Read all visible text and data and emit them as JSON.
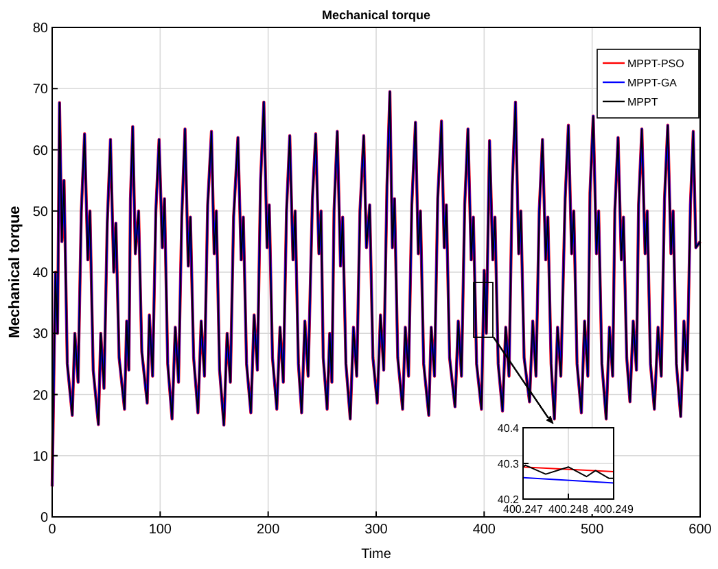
{
  "chart_data": [
    {
      "type": "line",
      "title": "Mechanical torque",
      "xlabel": "Time",
      "ylabel": "Mechanical torque",
      "xlim": [
        0,
        600
      ],
      "xticks": [
        0,
        100,
        200,
        300,
        400,
        500,
        600
      ],
      "ylim": [
        0,
        80
      ],
      "yticks": [
        0,
        10,
        20,
        30,
        40,
        50,
        60,
        70,
        80
      ],
      "grid": true,
      "legend": "top right",
      "line_style": "solid",
      "marker": "none",
      "x": [
        0,
        3,
        5,
        6.8,
        9,
        11,
        14,
        18.6,
        21,
        24,
        27,
        30,
        33,
        35,
        38,
        42.8,
        45,
        48,
        51,
        54,
        57,
        59,
        62,
        67,
        69,
        71,
        72.5,
        74.6,
        77,
        80,
        83,
        88,
        90,
        93,
        96,
        99,
        102,
        104,
        107,
        111,
        114,
        117,
        120,
        123,
        126,
        128,
        131,
        135,
        138,
        141,
        144,
        147.5,
        150,
        152,
        155,
        159,
        162,
        165,
        168,
        172,
        175,
        177,
        180,
        184,
        187,
        190,
        193,
        196,
        199,
        201,
        204,
        208,
        211,
        214,
        217,
        220,
        223,
        225,
        228,
        231,
        234,
        237,
        241,
        244,
        247,
        249,
        251,
        254.6,
        257,
        259,
        261,
        264,
        267,
        269,
        272,
        276,
        279,
        282,
        285,
        288.5,
        291,
        294,
        297,
        301,
        304,
        307,
        310,
        312.7,
        315,
        317,
        320,
        324.5,
        327,
        330,
        333,
        336.4,
        339,
        341,
        344,
        348.7,
        351,
        354,
        357,
        360.5,
        363,
        365,
        368,
        373,
        376,
        379,
        382,
        385,
        388,
        390,
        393,
        397.5,
        400,
        402,
        405,
        408,
        410,
        413,
        417,
        420,
        423,
        426,
        429,
        432,
        434,
        437,
        442,
        445,
        448,
        451,
        454,
        457,
        459,
        462,
        465,
        468,
        471,
        475,
        478,
        481,
        483,
        486,
        490,
        493,
        496,
        498,
        501,
        504,
        506,
        509,
        513,
        516,
        519,
        521,
        524,
        527,
        529,
        532,
        535,
        538,
        541,
        543,
        546,
        549,
        551,
        554,
        557.6,
        561,
        564,
        567,
        570,
        573,
        575,
        578,
        582,
        585,
        588,
        591,
        593.6,
        596,
        600
      ],
      "series": [
        {
          "name": "MPPT-PSO",
          "color": "#ff0000",
          "values": [
            5,
            40,
            30,
            67.7,
            45,
            55,
            25,
            16.6,
            30,
            22,
            50,
            62.6,
            42,
            50,
            24,
            15.1,
            30,
            21,
            48,
            61.7,
            40,
            48,
            26,
            17.6,
            32,
            24,
            52,
            63.8,
            43,
            50,
            27,
            18.6,
            33,
            23,
            50,
            61.7,
            44,
            52,
            25,
            16,
            31,
            22,
            49,
            63.4,
            41,
            49,
            26,
            17,
            32,
            23,
            51,
            63,
            43,
            50,
            24,
            15,
            30,
            22,
            49,
            62,
            42,
            49,
            25,
            17,
            33,
            24,
            55,
            67.8,
            44,
            51,
            26,
            17.6,
            31,
            22,
            50,
            62.3,
            42,
            50,
            25,
            17,
            32,
            23,
            52,
            62.6,
            43,
            50,
            26,
            17.6,
            30,
            22,
            50,
            63,
            41,
            49,
            25,
            16,
            31,
            23,
            50,
            62.3,
            44,
            51,
            26,
            18.6,
            33,
            24,
            54,
            69.5,
            44,
            52,
            26,
            17.6,
            31,
            23,
            51,
            64.5,
            43,
            50,
            25,
            16.6,
            31,
            23,
            52,
            64.7,
            44,
            51,
            26,
            18,
            32,
            23,
            51,
            63.4,
            42,
            49,
            25,
            17.6,
            40.3,
            30,
            61.5,
            42,
            49,
            25,
            17.3,
            31,
            23,
            54,
            67.8,
            43,
            50,
            26,
            18.8,
            32,
            23,
            50,
            61.7,
            42,
            49,
            25,
            16,
            31,
            23,
            52,
            64,
            43,
            50,
            25,
            17,
            32,
            23,
            53,
            65.5,
            43,
            50,
            25,
            16,
            31,
            23,
            50,
            62,
            42,
            49,
            26,
            18.8,
            32,
            24,
            51,
            63.4,
            43,
            50,
            25,
            17.6,
            31,
            23,
            52,
            64,
            43,
            50,
            25,
            16.4,
            32,
            24,
            51,
            63,
            44,
            45
          ]
        },
        {
          "name": "MPPT-GA",
          "color": "#0000ff",
          "values": [
            5,
            40,
            30,
            67.7,
            45,
            55,
            25,
            16.6,
            30,
            22,
            50,
            62.6,
            42,
            50,
            24,
            15.1,
            30,
            21,
            48,
            61.7,
            40,
            48,
            26,
            17.6,
            32,
            24,
            52,
            63.8,
            43,
            50,
            27,
            18.6,
            33,
            23,
            50,
            61.7,
            44,
            52,
            25,
            16,
            31,
            22,
            49,
            63.4,
            41,
            49,
            26,
            17,
            32,
            23,
            51,
            63,
            43,
            50,
            24,
            15,
            30,
            22,
            49,
            62,
            42,
            49,
            25,
            17,
            33,
            24,
            55,
            67.8,
            44,
            51,
            26,
            17.6,
            31,
            22,
            50,
            62.3,
            42,
            50,
            25,
            17,
            32,
            23,
            52,
            62.6,
            43,
            50,
            26,
            17.6,
            30,
            22,
            50,
            63,
            41,
            49,
            25,
            16,
            31,
            23,
            50,
            62.3,
            44,
            51,
            26,
            18.6,
            33,
            24,
            54,
            69.5,
            44,
            52,
            26,
            17.6,
            31,
            23,
            51,
            64.5,
            43,
            50,
            25,
            16.6,
            31,
            23,
            52,
            64.7,
            44,
            51,
            26,
            18,
            32,
            23,
            51,
            63.4,
            42,
            49,
            25,
            17.6,
            40.3,
            30,
            61.5,
            42,
            49,
            25,
            17.3,
            31,
            23,
            54,
            67.8,
            43,
            50,
            26,
            18.8,
            32,
            23,
            50,
            61.7,
            42,
            49,
            25,
            16,
            31,
            23,
            52,
            64,
            43,
            50,
            25,
            17,
            32,
            23,
            53,
            65.5,
            43,
            50,
            25,
            16,
            31,
            23,
            50,
            62,
            42,
            49,
            26,
            18.8,
            32,
            24,
            51,
            63.4,
            43,
            50,
            25,
            17.6,
            31,
            23,
            52,
            64,
            43,
            50,
            25,
            16.4,
            32,
            24,
            51,
            63,
            44,
            45
          ]
        },
        {
          "name": "MPPT",
          "color": "#000000",
          "values": [
            5,
            40,
            30,
            67.7,
            45,
            55,
            25,
            16.6,
            30,
            22,
            50,
            62.6,
            42,
            50,
            24,
            15.1,
            30,
            21,
            48,
            61.7,
            40,
            48,
            26,
            17.6,
            32,
            24,
            52,
            63.8,
            43,
            50,
            27,
            18.6,
            33,
            23,
            50,
            61.7,
            44,
            52,
            25,
            16,
            31,
            22,
            49,
            63.4,
            41,
            49,
            26,
            17,
            32,
            23,
            51,
            63,
            43,
            50,
            24,
            15,
            30,
            22,
            49,
            62,
            42,
            49,
            25,
            17,
            33,
            24,
            55,
            67.8,
            44,
            51,
            26,
            17.6,
            31,
            22,
            50,
            62.3,
            42,
            50,
            25,
            17,
            32,
            23,
            52,
            62.6,
            43,
            50,
            26,
            17.6,
            30,
            22,
            50,
            63,
            41,
            49,
            25,
            16,
            31,
            23,
            50,
            62.3,
            44,
            51,
            26,
            18.6,
            33,
            24,
            54,
            69.5,
            44,
            52,
            26,
            17.6,
            31,
            23,
            51,
            64.5,
            43,
            50,
            25,
            16.6,
            31,
            23,
            52,
            64.7,
            44,
            51,
            26,
            18,
            32,
            23,
            51,
            63.4,
            42,
            49,
            25,
            17.6,
            40.3,
            30,
            61.5,
            42,
            49,
            25,
            17.3,
            31,
            23,
            54,
            67.8,
            43,
            50,
            26,
            18.8,
            32,
            23,
            50,
            61.7,
            42,
            49,
            25,
            16,
            31,
            23,
            52,
            64,
            43,
            50,
            25,
            17,
            32,
            23,
            53,
            65.5,
            43,
            50,
            25,
            16,
            31,
            23,
            50,
            62,
            42,
            49,
            26,
            18.8,
            32,
            24,
            51,
            63.4,
            43,
            50,
            25,
            17.6,
            31,
            23,
            52,
            64,
            43,
            50,
            25,
            16.4,
            32,
            24,
            51,
            63,
            44,
            45
          ]
        }
      ]
    },
    {
      "type": "line",
      "xlim": [
        400.247,
        400.249
      ],
      "xticks": [
        400.247,
        400.248,
        400.249
      ],
      "ylim": [
        40.2,
        40.4
      ],
      "yticks": [
        40.2,
        40.3,
        40.4
      ],
      "grid": true,
      "line_style": "solid",
      "marker": "none",
      "series": [
        {
          "color": "#ff0000",
          "x": [
            400.247,
            400.249
          ],
          "values": [
            40.29,
            40.277
          ]
        },
        {
          "color": "#0000ff",
          "x": [
            400.247,
            400.249
          ],
          "values": [
            40.26,
            40.245
          ]
        },
        {
          "color": "#000000",
          "x": [
            400.247,
            400.24705,
            400.2475,
            400.248,
            400.2484,
            400.2486,
            400.2489,
            400.249
          ],
          "values": [
            40.29,
            40.295,
            40.27,
            40.29,
            40.263,
            40.28,
            40.258,
            40.258
          ]
        }
      ]
    }
  ]
}
